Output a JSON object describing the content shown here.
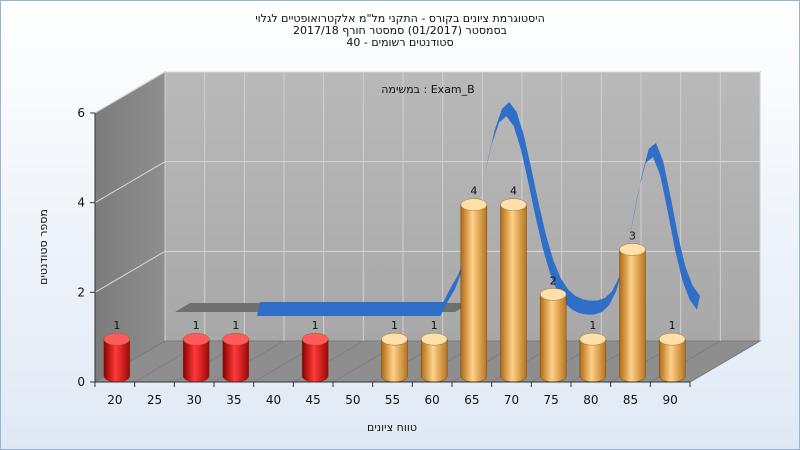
{
  "chart_data": {
    "type": "bar",
    "title_lines": [
      "היסטוגרמת ציונים בקורס - התקני מל\"מ אלקטרואופטיים לגלוי",
      "בסמסטר  (01/2017)  סמסטר חורף 2017/18",
      "סטודנטים רשומים - 40"
    ],
    "subtitle": "במשימה : Exam_B",
    "xlabel": "טווח ציונים",
    "ylabel": "מספר סטודנטים",
    "x_ticks": [
      "20",
      "25",
      "30",
      "35",
      "40",
      "45",
      "50",
      "55",
      "60",
      "65",
      "70",
      "75",
      "80",
      "85",
      "90"
    ],
    "y_ticks": [
      "0",
      "2",
      "4",
      "6"
    ],
    "ylim": [
      0,
      6
    ],
    "grid": true,
    "categories": [
      "20",
      "30",
      "35",
      "45",
      "55",
      "60",
      "65",
      "70",
      "75",
      "80",
      "85",
      "90"
    ],
    "values": [
      1,
      1,
      1,
      1,
      1,
      1,
      4,
      4,
      2,
      1,
      3,
      1
    ],
    "bar_colors": [
      "#e02020",
      "#e02020",
      "#e02020",
      "#e02020",
      "#e8a23c",
      "#e8a23c",
      "#e8a23c",
      "#e8a23c",
      "#e8a23c",
      "#e8a23c",
      "#e8a23c",
      "#e8a23c"
    ],
    "curve_color": "#2f6fc8",
    "fail_color": "#e02020",
    "pass_color": "#e8a23c"
  }
}
